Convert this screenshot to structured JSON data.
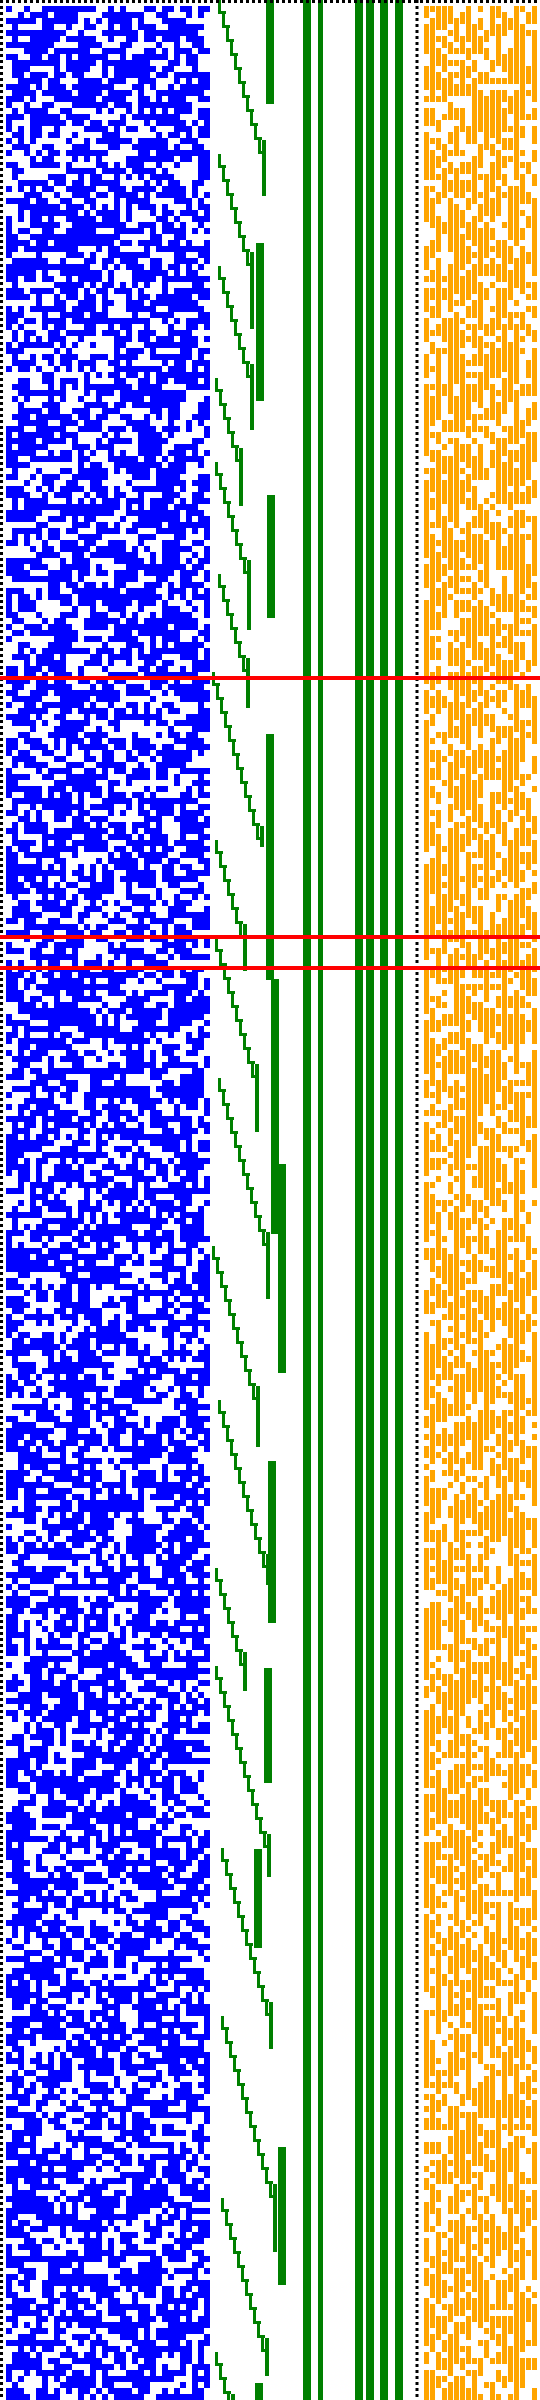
{
  "colors": {
    "background": "#ffffff",
    "border": "#000000",
    "noise_block": "#0000ff",
    "staircase": "#008000",
    "columns": "#008000",
    "speckle_block": "#ffa500",
    "markers": "#ff0000"
  },
  "panels": [
    {
      "name": "left-dotted-border",
      "style": "dotted",
      "color": "#000000"
    },
    {
      "name": "top-dotted-border",
      "style": "dotted",
      "color": "#000000"
    },
    {
      "name": "blue-noise-block",
      "color": "#0000ff",
      "fill_fraction": 0.55
    },
    {
      "name": "green-staircase",
      "color": "#008000"
    },
    {
      "name": "green-vertical-columns",
      "color": "#008000",
      "count": 6
    },
    {
      "name": "column-divider",
      "style": "dotted",
      "color": "#000000"
    },
    {
      "name": "orange-speckle-block",
      "color": "#ffa500",
      "fill_fraction": 0.62
    }
  ],
  "markers": {
    "count": 3,
    "color": "#ff0000"
  }
}
